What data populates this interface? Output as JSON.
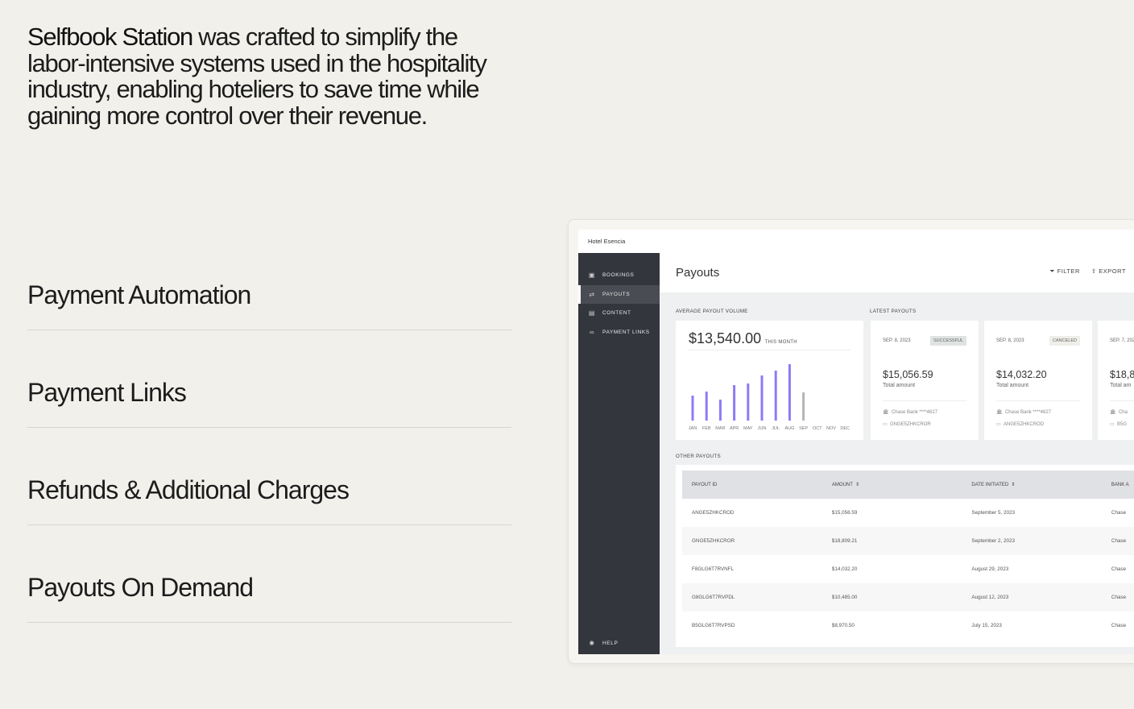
{
  "intro": {
    "brand": "Selfbook Station",
    "text": " was crafted to simplify the labor-intensive systems used in the hospitality industry, enabling hoteliers to save time while gaining more control over their revenue."
  },
  "features": [
    "Payment Automation",
    "Payment Links",
    "Refunds & Additional Charges",
    "Payouts On Demand"
  ],
  "app": {
    "hotel": "Hotel Esencia",
    "nav": [
      {
        "label": "BOOKINGS",
        "icon": "calendar-icon"
      },
      {
        "label": "PAYOUTS",
        "icon": "transfer-icon",
        "active": true
      },
      {
        "label": "CONTENT",
        "icon": "briefcase-icon"
      },
      {
        "label": "PAYMENT LINKS",
        "icon": "link-icon"
      }
    ],
    "help": "HELP",
    "title": "Payouts",
    "filter": "FILTER",
    "export": "EXPORT",
    "avg_label": "AVERAGE PAYOUT VOLUME",
    "avg_value": "$13,540.00",
    "avg_period": "THIS MONTH",
    "latest_label": "LATEST PAYOUTS",
    "latest": [
      {
        "date": "SEP. 8, 2023",
        "status": "SUCCESSFUL",
        "amount": "$15,056.59",
        "amount_label": "Total amount",
        "bank": "Chase Bank ****4627",
        "id": "GNGE5ZHKCROR"
      },
      {
        "date": "SEP. 8, 2023",
        "status": "CANCELED",
        "amount": "$14,032.20",
        "amount_label": "Total amount",
        "bank": "Chase Bank ****4627",
        "id": "ANGE5ZHKCROD"
      },
      {
        "date": "SEP. 7, 2023",
        "status": "",
        "amount": "$18,8",
        "amount_label": "Total am",
        "bank": "Cha",
        "id": "B5G"
      }
    ],
    "other_label": "OTHER PAYOUTS",
    "table": {
      "headers": [
        "PAYOUT ID",
        "AMOUNT",
        "DATE INITIATED",
        "BANK A"
      ],
      "rows": [
        [
          "ANGE5ZHKCROD",
          "$15,056.59",
          "September 5, 2023",
          "Chase"
        ],
        [
          "GNGE5ZHKCROR",
          "$18,809.21",
          "September 2, 2023",
          "Chase"
        ],
        [
          "F8GLG6T7RVNFL",
          "$14,032.20",
          "August 29, 2023",
          "Chase"
        ],
        [
          "G8GLG6T7RVPDL",
          "$10,485.00",
          "August 12, 2023",
          "Chase"
        ],
        [
          "B5GLG6T7RVPSD",
          "$8,970.50",
          "July 15, 2023",
          "Chase"
        ]
      ]
    }
  },
  "chart_data": {
    "type": "bar",
    "categories": [
      "JAN",
      "FEB",
      "MAR",
      "APR",
      "MAY",
      "JUN",
      "JUL",
      "AUG",
      "SEP",
      "OCT",
      "NOV",
      "DEC"
    ],
    "values": [
      31,
      36,
      26,
      44,
      46,
      56,
      62,
      70,
      35,
      null,
      null,
      null
    ],
    "colors": {
      "past": "#8b7cf6",
      "current": "#b5b5b5"
    }
  }
}
